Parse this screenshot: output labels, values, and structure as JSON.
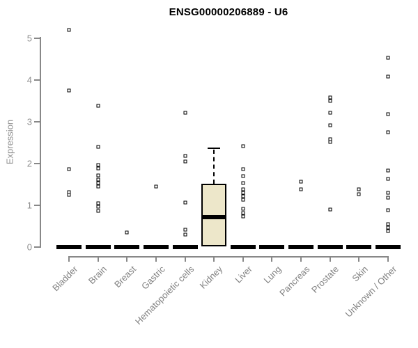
{
  "window": {
    "title": "ENSG00000206889 - U6"
  },
  "colors": {
    "background": "#ffffff",
    "axis": "#888888",
    "tick_label": "#8f8f8f",
    "category_label": "#808080",
    "box_fill": "#ede7ca",
    "box_border": "#000000",
    "point": "#000000",
    "title": "#000000"
  },
  "chart_data": {
    "type": "boxplot",
    "title": "ENSG00000206889 - U6",
    "xlabel": "",
    "ylabel": "Expression",
    "ylim": [
      0,
      5
    ],
    "yticks": [
      0,
      1,
      2,
      3,
      4,
      5
    ],
    "grid": false,
    "legend": "none",
    "categories": [
      "Bladder",
      "Brain",
      "Breast",
      "Gastric",
      "Hematopoietic cells",
      "Kidney",
      "Liver",
      "Lung",
      "Pancreas",
      "Prostate",
      "Skin",
      "Unknown / Other"
    ],
    "groups": [
      {
        "label": "Bladder",
        "box": {
          "q1": 0,
          "median": 0,
          "q3": 0,
          "whisker_low": 0,
          "whisker_high": 0
        },
        "outliers": [
          5.2,
          3.75,
          1.87,
          1.32,
          1.25
        ]
      },
      {
        "label": "Brain",
        "box": {
          "q1": 0,
          "median": 0,
          "q3": 0,
          "whisker_low": 0,
          "whisker_high": 0
        },
        "outliers": [
          3.38,
          2.4,
          1.97,
          1.88,
          1.72,
          1.62,
          1.53,
          1.45,
          1.05,
          0.97,
          0.87
        ]
      },
      {
        "label": "Breast",
        "box": {
          "q1": 0,
          "median": 0,
          "q3": 0,
          "whisker_low": 0,
          "whisker_high": 0
        },
        "outliers": [
          0.35
        ]
      },
      {
        "label": "Gastric",
        "box": {
          "q1": 0,
          "median": 0,
          "q3": 0,
          "whisker_low": 0,
          "whisker_high": 0
        },
        "outliers": [
          1.45
        ]
      },
      {
        "label": "Hematopoietic cells",
        "box": {
          "q1": 0,
          "median": 0,
          "q3": 0,
          "whisker_low": 0,
          "whisker_high": 0
        },
        "outliers": [
          3.22,
          2.18,
          2.05,
          1.07,
          0.42,
          0.3
        ]
      },
      {
        "label": "Kidney",
        "box": {
          "q1": 0.02,
          "median": 0.72,
          "q3": 1.52,
          "whisker_low": 0.02,
          "whisker_high": 2.37
        },
        "outliers": []
      },
      {
        "label": "Liver",
        "box": {
          "q1": 0,
          "median": 0,
          "q3": 0,
          "whisker_low": 0,
          "whisker_high": 0
        },
        "outliers": [
          2.42,
          1.87,
          1.7,
          1.53,
          1.38,
          1.3,
          1.22,
          1.13,
          0.92,
          0.82,
          0.73
        ]
      },
      {
        "label": "Lung",
        "box": {
          "q1": 0,
          "median": 0,
          "q3": 0,
          "whisker_low": 0,
          "whisker_high": 0
        },
        "outliers": []
      },
      {
        "label": "Pancreas",
        "box": {
          "q1": 0,
          "median": 0,
          "q3": 0,
          "whisker_low": 0,
          "whisker_high": 0
        },
        "outliers": [
          1.57,
          1.38
        ]
      },
      {
        "label": "Prostate",
        "box": {
          "q1": 0,
          "median": 0,
          "q3": 0,
          "whisker_low": 0,
          "whisker_high": 0
        },
        "outliers": [
          3.58,
          3.5,
          3.22,
          2.92,
          2.58,
          2.52,
          0.9
        ]
      },
      {
        "label": "Skin",
        "box": {
          "q1": 0,
          "median": 0,
          "q3": 0,
          "whisker_low": 0,
          "whisker_high": 0
        },
        "outliers": [
          1.38,
          1.27
        ]
      },
      {
        "label": "Unknown / Other",
        "box": {
          "q1": 0,
          "median": 0,
          "q3": 0,
          "whisker_low": 0,
          "whisker_high": 0
        },
        "outliers": [
          4.53,
          4.08,
          3.18,
          2.75,
          1.83,
          1.63,
          1.3,
          1.18,
          0.88,
          0.55,
          0.47,
          0.38
        ]
      }
    ]
  }
}
